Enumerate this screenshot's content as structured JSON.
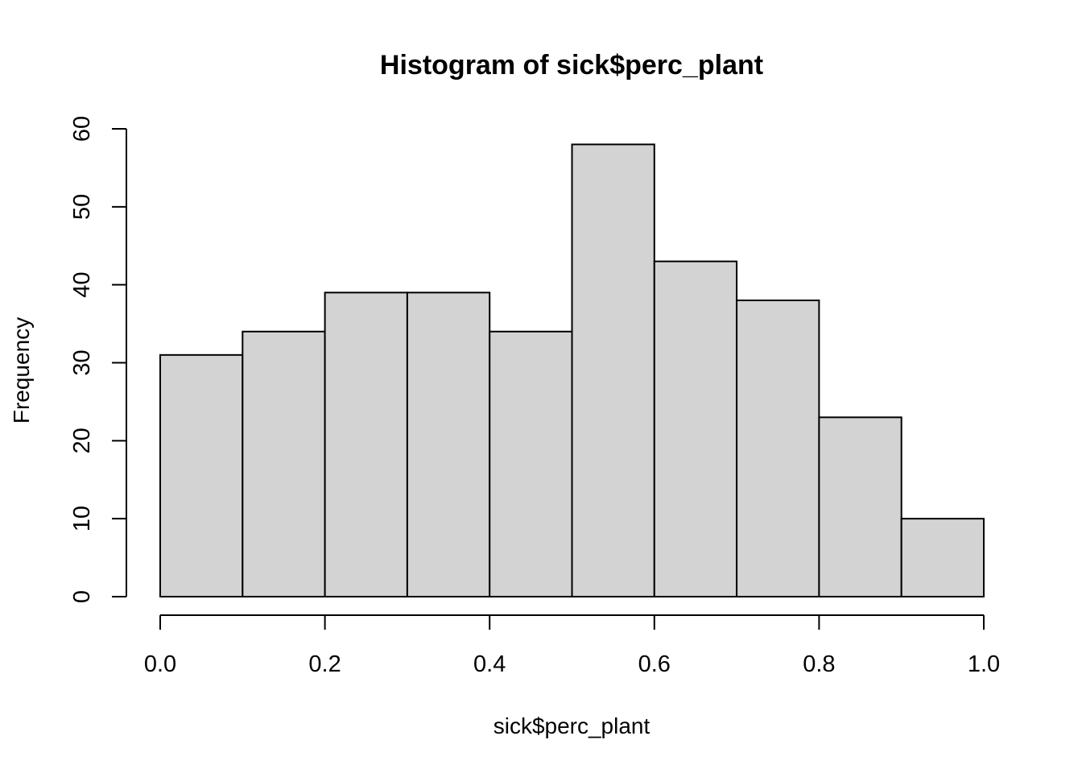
{
  "chart_data": {
    "type": "bar",
    "title": "Histogram of sick$perc_plant",
    "xlabel": "sick$perc_plant",
    "ylabel": "Frequency",
    "bins": [
      {
        "start": 0.0,
        "end": 0.1,
        "count": 31
      },
      {
        "start": 0.1,
        "end": 0.2,
        "count": 34
      },
      {
        "start": 0.2,
        "end": 0.3,
        "count": 39
      },
      {
        "start": 0.3,
        "end": 0.4,
        "count": 39
      },
      {
        "start": 0.4,
        "end": 0.5,
        "count": 34
      },
      {
        "start": 0.5,
        "end": 0.6,
        "count": 58
      },
      {
        "start": 0.6,
        "end": 0.7,
        "count": 43
      },
      {
        "start": 0.7,
        "end": 0.8,
        "count": 38
      },
      {
        "start": 0.8,
        "end": 0.9,
        "count": 23
      },
      {
        "start": 0.9,
        "end": 1.0,
        "count": 10
      }
    ],
    "xlim": [
      0,
      1
    ],
    "ylim": [
      0,
      60
    ],
    "x_ticks": [
      0.0,
      0.2,
      0.4,
      0.6,
      0.8,
      1.0
    ],
    "x_tick_labels": [
      "0.0",
      "0.2",
      "0.4",
      "0.6",
      "0.8",
      "1.0"
    ],
    "y_ticks": [
      0,
      10,
      20,
      30,
      40,
      50,
      60
    ],
    "y_tick_labels": [
      "0",
      "10",
      "20",
      "30",
      "40",
      "50",
      "60"
    ],
    "grid": false,
    "bar_fill": "#d3d3d3",
    "bar_stroke": "#000000"
  }
}
